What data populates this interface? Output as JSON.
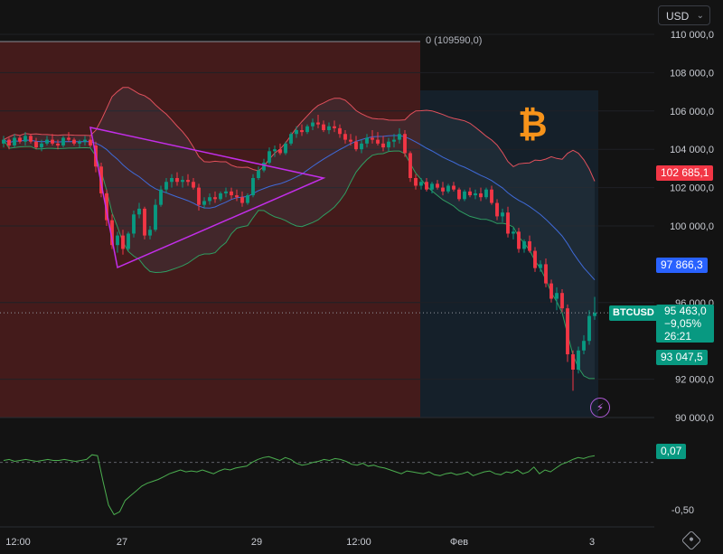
{
  "currency": {
    "label": "USD",
    "chevron_icon": "chevron-down-icon"
  },
  "symbol": "BTCUSD",
  "fib_label": "0 (109590,0)",
  "colors": {
    "up": "#089981",
    "down": "#f23645",
    "upper_band": "#e0505c",
    "lower_band": "#2f9e62",
    "basis": "#3f6ad8",
    "triangle": "#c22ee8",
    "oscillator": "#4caf50",
    "range_bg": "#5a1f1f",
    "forecast_bg": "#16222e"
  },
  "price_axis": {
    "ticks": [
      "110 000,0",
      "108 000,0",
      "106 000,0",
      "104 000,0",
      "102 000,0",
      "100 000,0",
      "96 000,0",
      "92 000,0",
      "90 000,0"
    ],
    "tick_values": [
      110000,
      108000,
      106000,
      104000,
      102000,
      100000,
      96000,
      92000,
      90000
    ]
  },
  "osc_axis": {
    "ticks": [
      "-0,50"
    ],
    "tick_values": [
      -0.5
    ]
  },
  "time_axis": [
    "12:00",
    "27",
    "29",
    "12:00",
    "Фев",
    "3"
  ],
  "tags": {
    "upper": {
      "label": "102 685,1",
      "value": 102685.1
    },
    "basis": {
      "label": "97 866,3",
      "value": 97866.3
    },
    "lower": {
      "label": "93 047,5",
      "value": 93047.5
    },
    "oscillator": {
      "label": "0,07",
      "value": 0.07
    }
  },
  "last_price": {
    "price": "95 463,0",
    "change": "−9,05%",
    "countdown": "26:21"
  },
  "icons": {
    "logo": "bitcoin-logo-icon",
    "alert": "lightning-icon",
    "settings": "settings-icon"
  },
  "chart_data": {
    "type": "candlestick",
    "x_range_labels": [
      "12:00",
      "27",
      "29",
      "12:00",
      "Фев",
      "3"
    ],
    "ylim": [
      90000,
      110000
    ],
    "fib_level": {
      "ratio": 0,
      "price": 109590.0
    },
    "candles": [
      [
        104300,
        104700,
        104100,
        104500
      ],
      [
        104500,
        104600,
        104000,
        104200
      ],
      [
        104200,
        104800,
        104100,
        104600
      ],
      [
        104600,
        104700,
        104300,
        104400
      ],
      [
        104400,
        104900,
        104200,
        104700
      ],
      [
        104700,
        104800,
        104300,
        104400
      ],
      [
        104400,
        104600,
        104000,
        104100
      ],
      [
        104100,
        104500,
        103900,
        104300
      ],
      [
        104300,
        104700,
        104200,
        104500
      ],
      [
        104500,
        104800,
        104200,
        104300
      ],
      [
        104300,
        104500,
        104000,
        104200
      ],
      [
        104200,
        104700,
        104100,
        104600
      ],
      [
        104600,
        104900,
        104400,
        104500
      ],
      [
        104500,
        104600,
        104200,
        104300
      ],
      [
        104300,
        104500,
        104100,
        104400
      ],
      [
        104400,
        104700,
        104200,
        104500
      ],
      [
        104500,
        104700,
        104100,
        104200
      ],
      [
        104200,
        104400,
        102800,
        103100
      ],
      [
        103100,
        103300,
        101500,
        101700
      ],
      [
        101700,
        101900,
        100000,
        100300
      ],
      [
        100300,
        100600,
        98800,
        99000
      ],
      [
        99000,
        99700,
        98600,
        99500
      ],
      [
        99500,
        99800,
        98500,
        98800
      ],
      [
        98800,
        99700,
        98700,
        99600
      ],
      [
        99600,
        100800,
        99400,
        100600
      ],
      [
        100600,
        101200,
        100400,
        100900
      ],
      [
        100900,
        101000,
        99300,
        99500
      ],
      [
        99500,
        100000,
        99300,
        99800
      ],
      [
        99800,
        101400,
        99700,
        101100
      ],
      [
        101100,
        102100,
        101000,
        101900
      ],
      [
        101900,
        102500,
        101700,
        102300
      ],
      [
        102300,
        102700,
        102000,
        102500
      ],
      [
        102500,
        102800,
        102100,
        102300
      ],
      [
        102300,
        102600,
        102000,
        102400
      ],
      [
        102400,
        102700,
        102100,
        102300
      ],
      [
        102300,
        102500,
        101900,
        102000
      ],
      [
        102000,
        102200,
        100800,
        101100
      ],
      [
        101100,
        101500,
        100900,
        101300
      ],
      [
        101300,
        101700,
        101100,
        101500
      ],
      [
        101500,
        101800,
        101200,
        101400
      ],
      [
        101400,
        101800,
        101300,
        101700
      ],
      [
        101700,
        102000,
        101500,
        101800
      ],
      [
        101800,
        102000,
        101400,
        101600
      ],
      [
        101600,
        101900,
        101300,
        101500
      ],
      [
        101500,
        101800,
        101000,
        101200
      ],
      [
        101200,
        101700,
        101100,
        101600
      ],
      [
        101600,
        102700,
        101500,
        102500
      ],
      [
        102500,
        103100,
        102400,
        102900
      ],
      [
        102900,
        103500,
        102800,
        103300
      ],
      [
        103300,
        104100,
        103200,
        103900
      ],
      [
        103900,
        104200,
        103600,
        104000
      ],
      [
        104000,
        104300,
        103700,
        103800
      ],
      [
        103800,
        104400,
        103700,
        104300
      ],
      [
        104300,
        104900,
        104200,
        104800
      ],
      [
        104800,
        105200,
        104600,
        105000
      ],
      [
        105000,
        105300,
        104700,
        104900
      ],
      [
        104900,
        105300,
        104800,
        105200
      ],
      [
        105200,
        105600,
        105000,
        105400
      ],
      [
        105400,
        105800,
        105100,
        105300
      ],
      [
        105300,
        105500,
        104900,
        105000
      ],
      [
        105000,
        105400,
        104800,
        105200
      ],
      [
        105200,
        105500,
        104900,
        105100
      ],
      [
        105100,
        105300,
        104600,
        104800
      ],
      [
        104800,
        105000,
        104300,
        104500
      ],
      [
        104500,
        104800,
        104200,
        104400
      ],
      [
        104400,
        104700,
        103900,
        104000
      ],
      [
        104000,
        104500,
        103800,
        104300
      ],
      [
        104300,
        104800,
        104100,
        104600
      ],
      [
        104600,
        105000,
        104300,
        104500
      ],
      [
        104500,
        104900,
        104200,
        104300
      ],
      [
        104300,
        104700,
        103900,
        104100
      ],
      [
        104100,
        104600,
        103900,
        104400
      ],
      [
        104400,
        104800,
        104100,
        104500
      ],
      [
        104500,
        105100,
        104300,
        104800
      ],
      [
        104800,
        105000,
        103600,
        103800
      ],
      [
        103800,
        103900,
        102300,
        102500
      ],
      [
        102500,
        102700,
        101900,
        102100
      ],
      [
        102100,
        102500,
        101900,
        102300
      ],
      [
        102300,
        102500,
        101800,
        101900
      ],
      [
        101900,
        102300,
        101700,
        102200
      ],
      [
        102200,
        102400,
        101900,
        102000
      ],
      [
        102000,
        102300,
        101600,
        101800
      ],
      [
        101800,
        102200,
        101700,
        102100
      ],
      [
        102100,
        102300,
        101800,
        101900
      ],
      [
        101900,
        102000,
        101300,
        101400
      ],
      [
        101400,
        101900,
        101300,
        101800
      ],
      [
        101800,
        102000,
        101500,
        101600
      ],
      [
        101600,
        101900,
        101400,
        101700
      ],
      [
        101700,
        102000,
        101300,
        101500
      ],
      [
        101500,
        102000,
        101400,
        101900
      ],
      [
        101900,
        102100,
        101100,
        101200
      ],
      [
        101200,
        101400,
        100300,
        100500
      ],
      [
        100500,
        100900,
        100200,
        100700
      ],
      [
        100700,
        101000,
        99400,
        99600
      ],
      [
        99600,
        99900,
        99300,
        99700
      ],
      [
        99700,
        99900,
        98600,
        98800
      ],
      [
        98800,
        99300,
        98600,
        99200
      ],
      [
        99200,
        99500,
        98600,
        98700
      ],
      [
        98700,
        98900,
        97600,
        97800
      ],
      [
        97800,
        98200,
        97600,
        98000
      ],
      [
        98000,
        98300,
        96800,
        97000
      ],
      [
        97000,
        97200,
        96000,
        96200
      ],
      [
        96200,
        96800,
        95600,
        96500
      ],
      [
        96500,
        96700,
        95500,
        95700
      ],
      [
        95700,
        95900,
        92900,
        93300
      ],
      [
        93300,
        93500,
        91400,
        92500
      ],
      [
        92500,
        93700,
        92300,
        93500
      ],
      [
        93500,
        94300,
        93300,
        94000
      ],
      [
        94000,
        95600,
        93800,
        95300
      ],
      [
        95300,
        96300,
        95100,
        95463
      ]
    ],
    "bollinger": {
      "upper_last": 102685.1,
      "basis_last": 97866.3,
      "lower_last": 93047.5
    },
    "oscillator": {
      "values": [
        0.02,
        0.03,
        0.01,
        0.02,
        0.03,
        0.02,
        0.01,
        0.02,
        0.03,
        0.02,
        0.02,
        0.03,
        0.02,
        0.01,
        0.02,
        0.03,
        0.08,
        0.07,
        -0.2,
        -0.45,
        -0.55,
        -0.52,
        -0.4,
        -0.35,
        -0.3,
        -0.25,
        -0.22,
        -0.2,
        -0.18,
        -0.15,
        -0.12,
        -0.1,
        -0.08,
        -0.1,
        -0.09,
        -0.1,
        -0.08,
        -0.1,
        -0.12,
        -0.09,
        -0.07,
        -0.08,
        -0.06,
        -0.05,
        -0.04,
        0.0,
        0.03,
        0.05,
        0.06,
        0.04,
        0.02,
        0.05,
        0.03,
        -0.01,
        -0.03,
        -0.02,
        0.0,
        0.01,
        0.03,
        0.02,
        0.04,
        0.03,
        0.01,
        -0.02,
        -0.03,
        -0.01,
        -0.04,
        -0.03,
        -0.05,
        -0.06,
        -0.08,
        -0.1,
        -0.12,
        -0.09,
        -0.1,
        -0.11,
        -0.12,
        -0.1,
        -0.13,
        -0.14,
        -0.12,
        -0.11,
        -0.13,
        -0.12,
        -0.1,
        -0.14,
        -0.12,
        -0.1,
        -0.09,
        -0.12,
        -0.13,
        -0.1,
        -0.11,
        -0.08,
        -0.12,
        -0.1,
        -0.05,
        -0.12,
        -0.08,
        -0.1,
        -0.06,
        -0.02,
        0.0,
        0.03,
        0.05,
        0.04,
        0.06,
        0.07
      ],
      "ylim": [
        -0.65,
        0.3
      ]
    }
  }
}
